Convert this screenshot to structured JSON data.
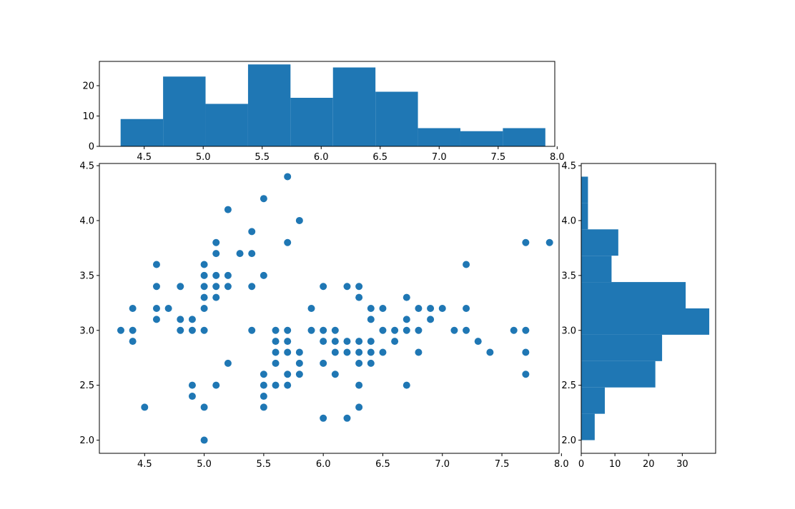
{
  "chart_data": [
    {
      "id": "top-histogram",
      "type": "bar",
      "orientation": "vertical",
      "bin_edges": [
        4.3,
        4.66,
        5.02,
        5.38,
        5.74,
        6.1,
        6.46,
        6.82,
        7.18,
        7.54,
        7.9
      ],
      "counts": [
        9,
        23,
        14,
        27,
        16,
        26,
        18,
        6,
        5,
        6
      ],
      "xlim": [
        4.12,
        7.98
      ],
      "ylim": [
        0,
        28
      ],
      "xticks": [
        4.5,
        5.0,
        5.5,
        6.0,
        6.5,
        7.0,
        7.5,
        8.0
      ],
      "xtick_labels": [
        "4.5",
        "5.0",
        "5.5",
        "6.0",
        "6.5",
        "7.0",
        "7.5",
        "8.0"
      ],
      "yticks": [
        0,
        10,
        20
      ],
      "ytick_labels": [
        "0",
        "10",
        "20"
      ],
      "color": "#1f77b4",
      "grid": false
    },
    {
      "id": "scatter",
      "type": "scatter",
      "xlim": [
        4.12,
        7.98
      ],
      "ylim": [
        1.88,
        4.52
      ],
      "xticks": [
        4.5,
        5.0,
        5.5,
        6.0,
        6.5,
        7.0,
        7.5,
        8.0
      ],
      "xtick_labels": [
        "4.5",
        "5.0",
        "5.5",
        "6.0",
        "6.5",
        "7.0",
        "7.5",
        "8.0"
      ],
      "yticks": [
        2.0,
        2.5,
        3.0,
        3.5,
        4.0,
        4.5
      ],
      "ytick_labels": [
        "2.0",
        "2.5",
        "3.0",
        "3.5",
        "4.0",
        "4.5"
      ],
      "color": "#1f77b4",
      "grid": false,
      "points": [
        [
          4.3,
          3.0
        ],
        [
          4.4,
          2.9
        ],
        [
          4.4,
          3.0
        ],
        [
          4.4,
          3.2
        ],
        [
          4.5,
          2.3
        ],
        [
          4.6,
          3.1
        ],
        [
          4.6,
          3.2
        ],
        [
          4.6,
          3.4
        ],
        [
          4.6,
          3.6
        ],
        [
          4.7,
          3.2
        ],
        [
          4.8,
          3.0
        ],
        [
          4.8,
          3.1
        ],
        [
          4.8,
          3.4
        ],
        [
          4.9,
          2.4
        ],
        [
          4.9,
          2.5
        ],
        [
          4.9,
          3.0
        ],
        [
          4.9,
          3.1
        ],
        [
          5.0,
          2.0
        ],
        [
          5.0,
          2.3
        ],
        [
          5.0,
          3.0
        ],
        [
          5.0,
          3.2
        ],
        [
          5.0,
          3.3
        ],
        [
          5.0,
          3.4
        ],
        [
          5.0,
          3.5
        ],
        [
          5.0,
          3.6
        ],
        [
          5.1,
          2.5
        ],
        [
          5.1,
          3.3
        ],
        [
          5.1,
          3.4
        ],
        [
          5.1,
          3.5
        ],
        [
          5.1,
          3.7
        ],
        [
          5.1,
          3.8
        ],
        [
          5.2,
          2.7
        ],
        [
          5.2,
          3.4
        ],
        [
          5.2,
          3.5
        ],
        [
          5.2,
          4.1
        ],
        [
          5.3,
          3.7
        ],
        [
          5.4,
          3.0
        ],
        [
          5.4,
          3.4
        ],
        [
          5.4,
          3.7
        ],
        [
          5.4,
          3.9
        ],
        [
          5.5,
          2.3
        ],
        [
          5.5,
          2.4
        ],
        [
          5.5,
          2.5
        ],
        [
          5.5,
          2.6
        ],
        [
          5.5,
          3.5
        ],
        [
          5.5,
          4.2
        ],
        [
          5.6,
          2.5
        ],
        [
          5.6,
          2.7
        ],
        [
          5.6,
          2.8
        ],
        [
          5.6,
          2.9
        ],
        [
          5.6,
          3.0
        ],
        [
          5.7,
          2.5
        ],
        [
          5.7,
          2.6
        ],
        [
          5.7,
          2.8
        ],
        [
          5.7,
          2.9
        ],
        [
          5.7,
          3.0
        ],
        [
          5.7,
          3.8
        ],
        [
          5.7,
          4.4
        ],
        [
          5.8,
          2.6
        ],
        [
          5.8,
          2.7
        ],
        [
          5.8,
          2.8
        ],
        [
          5.8,
          4.0
        ],
        [
          5.9,
          3.0
        ],
        [
          5.9,
          3.2
        ],
        [
          6.0,
          2.2
        ],
        [
          6.0,
          2.7
        ],
        [
          6.0,
          2.9
        ],
        [
          6.0,
          3.0
        ],
        [
          6.0,
          3.4
        ],
        [
          6.1,
          2.6
        ],
        [
          6.1,
          2.8
        ],
        [
          6.1,
          2.9
        ],
        [
          6.1,
          3.0
        ],
        [
          6.2,
          2.2
        ],
        [
          6.2,
          2.8
        ],
        [
          6.2,
          2.9
        ],
        [
          6.2,
          3.4
        ],
        [
          6.3,
          2.3
        ],
        [
          6.3,
          2.5
        ],
        [
          6.3,
          2.7
        ],
        [
          6.3,
          2.8
        ],
        [
          6.3,
          2.9
        ],
        [
          6.3,
          3.3
        ],
        [
          6.3,
          3.4
        ],
        [
          6.4,
          2.7
        ],
        [
          6.4,
          2.8
        ],
        [
          6.4,
          2.9
        ],
        [
          6.4,
          3.1
        ],
        [
          6.4,
          3.2
        ],
        [
          6.5,
          2.8
        ],
        [
          6.5,
          3.0
        ],
        [
          6.5,
          3.2
        ],
        [
          6.6,
          2.9
        ],
        [
          6.6,
          3.0
        ],
        [
          6.7,
          2.5
        ],
        [
          6.7,
          3.0
        ],
        [
          6.7,
          3.1
        ],
        [
          6.7,
          3.3
        ],
        [
          6.8,
          2.8
        ],
        [
          6.8,
          3.0
        ],
        [
          6.8,
          3.2
        ],
        [
          6.9,
          3.1
        ],
        [
          6.9,
          3.2
        ],
        [
          7.0,
          3.2
        ],
        [
          7.1,
          3.0
        ],
        [
          7.2,
          3.0
        ],
        [
          7.2,
          3.2
        ],
        [
          7.2,
          3.6
        ],
        [
          7.3,
          2.9
        ],
        [
          7.4,
          2.8
        ],
        [
          7.6,
          3.0
        ],
        [
          7.7,
          2.6
        ],
        [
          7.7,
          2.8
        ],
        [
          7.7,
          3.0
        ],
        [
          7.7,
          3.8
        ],
        [
          7.9,
          3.8
        ]
      ]
    },
    {
      "id": "right-histogram",
      "type": "bar",
      "orientation": "horizontal",
      "bin_edges": [
        2.0,
        2.24,
        2.48,
        2.72,
        2.96,
        3.2,
        3.44,
        3.68,
        3.92,
        4.16,
        4.4
      ],
      "counts": [
        4,
        7,
        22,
        24,
        38,
        31,
        9,
        11,
        2,
        2
      ],
      "xlim": [
        0,
        39.9
      ],
      "ylim": [
        1.88,
        4.52
      ],
      "xticks": [
        0,
        10,
        20,
        30
      ],
      "xtick_labels": [
        "0",
        "10",
        "20",
        "30"
      ],
      "yticks": [
        2.0,
        2.5,
        3.0,
        3.5,
        4.0,
        4.5
      ],
      "ytick_labels": [
        "2.0",
        "2.5",
        "3.0",
        "3.5",
        "4.0",
        "4.5"
      ],
      "color": "#1f77b4",
      "grid": false
    }
  ]
}
